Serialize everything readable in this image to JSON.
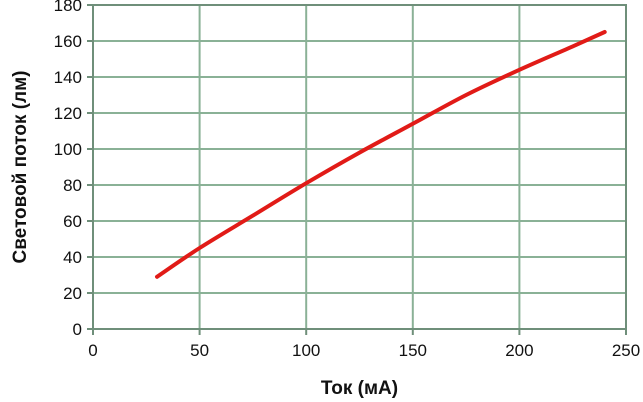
{
  "chart_data": {
    "type": "line",
    "xlabel": "Ток (мА)",
    "ylabel": "Световой поток (лм)",
    "xlim": [
      0,
      250
    ],
    "ylim": [
      0,
      180
    ],
    "xticks": [
      "0",
      "50",
      "100",
      "150",
      "200",
      "250"
    ],
    "yticks": [
      "0",
      "20",
      "40",
      "60",
      "80",
      "100",
      "120",
      "140",
      "160",
      "180"
    ],
    "grid": true,
    "series": [
      {
        "color": "#e11b17",
        "x": [
          30,
          50,
          75,
          100,
          125,
          150,
          175,
          200,
          225,
          240
        ],
        "y": [
          29,
          45,
          63,
          81,
          98,
          114,
          130,
          144,
          157,
          165
        ]
      }
    ]
  },
  "colors": {
    "grid": "#8ab196",
    "axis": "#6f8f7a",
    "line": "#e11b17"
  }
}
